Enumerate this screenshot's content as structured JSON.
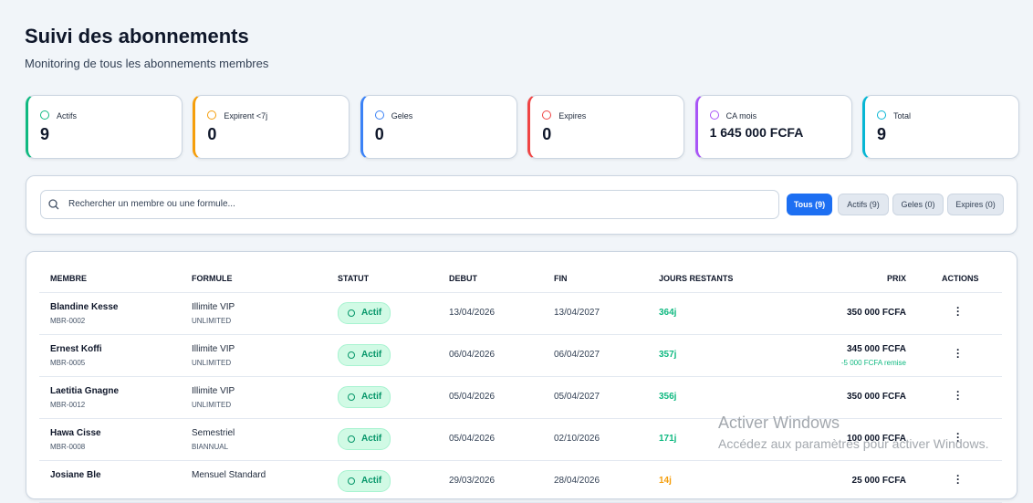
{
  "header": {
    "title": "Suivi des abonnements",
    "subtitle": "Monitoring de tous les abonnements membres"
  },
  "stats": [
    {
      "label": "Actifs",
      "value": "9",
      "color": "#10b981"
    },
    {
      "label": "Expirent <7j",
      "value": "0",
      "color": "#f59e0b"
    },
    {
      "label": "Geles",
      "value": "0",
      "color": "#3b82f6"
    },
    {
      "label": "Expires",
      "value": "0",
      "color": "#ef4444"
    },
    {
      "label": "CA mois",
      "value": "1 645 000 FCFA",
      "color": "#a855f7"
    },
    {
      "label": "Total",
      "value": "9",
      "color": "#06b6d4"
    }
  ],
  "search": {
    "placeholder": "Rechercher un membre ou une formule..."
  },
  "filters": [
    "Tous (9)",
    "Actifs (9)",
    "Geles (0)",
    "Expires (0)"
  ],
  "table": {
    "headers": [
      "MEMBRE",
      "FORMULE",
      "STATUT",
      "DEBUT",
      "FIN",
      "JOURS RESTANTS",
      "PRIX",
      "ACTIONS"
    ],
    "rows": [
      {
        "name": "Blandine Kesse",
        "id": "MBR-0002",
        "formula": "Illimite VIP",
        "formula_sub": "UNLIMITED",
        "status": "Actif",
        "start": "13/04/2026",
        "end": "13/04/2027",
        "days": "364j",
        "days_color": "#10b981",
        "price": "350 000 FCFA"
      },
      {
        "name": "Ernest Koffi",
        "id": "MBR-0005",
        "formula": "Illimite VIP",
        "formula_sub": "UNLIMITED",
        "status": "Actif",
        "start": "06/04/2026",
        "end": "06/04/2027",
        "days": "357j",
        "days_color": "#10b981",
        "price": "345 000 FCFA",
        "discount": "-5 000 FCFA remise"
      },
      {
        "name": "Laetitia Gnagne",
        "id": "MBR-0012",
        "formula": "Illimite VIP",
        "formula_sub": "UNLIMITED",
        "status": "Actif",
        "start": "05/04/2026",
        "end": "05/04/2027",
        "days": "356j",
        "days_color": "#10b981",
        "price": "350 000 FCFA"
      },
      {
        "name": "Hawa Cisse",
        "id": "MBR-0008",
        "formula": "Semestriel",
        "formula_sub": "BIANNUAL",
        "status": "Actif",
        "start": "05/04/2026",
        "end": "02/10/2026",
        "days": "171j",
        "days_color": "#10b981",
        "price": "100 000 FCFA"
      },
      {
        "name": "Josiane Ble",
        "formula": "Mensuel Standard",
        "status": "Actif",
        "start": "29/03/2026",
        "end": "28/04/2026",
        "days": "14j",
        "days_color": "#f59e0b",
        "price": "25 000 FCFA"
      }
    ]
  },
  "watermark": {
    "title": "Activer Windows",
    "text": "Accédez aux paramètres pour activer Windows."
  }
}
